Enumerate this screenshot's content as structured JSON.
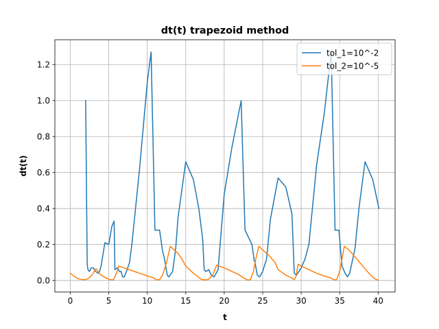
{
  "chart_data": {
    "type": "line",
    "title": "dt(t) trapezoid method",
    "xlabel": "t",
    "ylabel": "dt(t)",
    "xlim": [
      -2.0,
      42.2
    ],
    "ylim": [
      -0.064,
      1.338
    ],
    "xticks": [
      0,
      5,
      10,
      15,
      20,
      25,
      30,
      35,
      40
    ],
    "yticks": [
      0.0,
      0.2,
      0.4,
      0.6,
      0.8,
      1.0,
      1.2
    ],
    "grid": true,
    "legend": "top-right",
    "series": [
      {
        "name": "tol_1=10^-2",
        "color": "#1f77b4",
        "x": [
          2.0,
          2.2,
          2.3,
          2.5,
          2.7,
          3.0,
          3.3,
          3.6,
          3.8,
          4.0,
          4.5,
          5.0,
          5.4,
          5.7,
          5.8,
          6.1,
          6.4,
          6.6,
          6.8,
          7.0,
          7.3,
          7.7,
          8.0,
          9.0,
          10.0,
          10.5,
          11.0,
          11.6,
          12.0,
          12.2,
          12.6,
          12.8,
          13.3,
          13.7,
          14.0,
          15.0,
          16.0,
          16.7,
          17.2,
          17.4,
          17.6,
          18.0,
          18.3,
          18.7,
          19.2,
          20.0,
          21.0,
          22.2,
          22.7,
          23.6,
          23.9,
          24.0,
          24.3,
          24.6,
          25.0,
          25.5,
          26.0,
          27.0,
          28.0,
          28.8,
          29.1,
          29.4,
          29.7,
          30.0,
          30.5,
          31.0,
          32.0,
          33.0,
          33.9,
          34.4,
          34.9,
          35.3,
          35.7,
          36.0,
          36.3,
          36.6,
          37.0,
          37.5,
          38.3,
          39.3,
          40.1
        ],
        "values": [
          1.0,
          0.09,
          0.06,
          0.05,
          0.07,
          0.07,
          0.05,
          0.04,
          0.05,
          0.08,
          0.21,
          0.2,
          0.3,
          0.33,
          0.06,
          0.07,
          0.05,
          0.05,
          0.02,
          0.02,
          0.05,
          0.1,
          0.2,
          0.62,
          1.1,
          1.27,
          0.28,
          0.28,
          0.16,
          0.13,
          0.03,
          0.02,
          0.05,
          0.18,
          0.35,
          0.66,
          0.56,
          0.4,
          0.23,
          0.06,
          0.05,
          0.06,
          0.03,
          0.02,
          0.06,
          0.48,
          0.74,
          1.0,
          0.28,
          0.2,
          0.11,
          0.1,
          0.03,
          0.02,
          0.05,
          0.12,
          0.34,
          0.57,
          0.52,
          0.37,
          0.04,
          0.03,
          0.05,
          0.07,
          0.12,
          0.2,
          0.64,
          0.93,
          1.27,
          0.28,
          0.28,
          0.08,
          0.04,
          0.02,
          0.04,
          0.1,
          0.18,
          0.4,
          0.66,
          0.56,
          0.4
        ]
      },
      {
        "name": "tol_2=10^-5",
        "color": "#ff7f0e",
        "x": [
          0.0,
          0.3,
          0.6,
          1.0,
          1.5,
          2.0,
          2.3,
          2.6,
          3.0,
          3.2,
          3.4,
          3.6,
          3.8,
          4.0,
          4.4,
          4.8,
          5.2,
          5.6,
          6.0,
          6.3,
          7.0,
          8.0,
          9.0,
          10.0,
          10.8,
          11.2,
          11.6,
          12.0,
          12.5,
          13.0,
          13.5,
          14.0,
          14.5,
          15.0,
          16.0,
          16.6,
          17.0,
          17.4,
          17.9,
          18.5,
          19.0,
          20.0,
          21.0,
          22.0,
          22.5,
          23.0,
          23.4,
          23.8,
          24.1,
          24.5,
          25.0,
          25.8,
          26.6,
          27.0,
          28.0,
          28.7,
          29.1,
          29.3,
          29.6,
          30.0,
          30.5,
          31.0,
          32.0,
          33.0,
          33.8,
          34.3,
          34.6,
          35.0,
          35.6,
          36.2,
          37.2,
          38.0,
          39.0,
          39.6,
          40.0
        ],
        "values": [
          0.04,
          0.03,
          0.02,
          0.01,
          0.005,
          0.005,
          0.01,
          0.02,
          0.04,
          0.06,
          0.065,
          0.05,
          0.04,
          0.03,
          0.02,
          0.01,
          0.005,
          0.003,
          0.04,
          0.08,
          0.07,
          0.055,
          0.04,
          0.025,
          0.015,
          0.003,
          0.005,
          0.03,
          0.1,
          0.19,
          0.17,
          0.15,
          0.12,
          0.08,
          0.04,
          0.02,
          0.007,
          0.003,
          0.005,
          0.03,
          0.085,
          0.07,
          0.05,
          0.03,
          0.015,
          0.003,
          0.004,
          0.05,
          0.12,
          0.19,
          0.17,
          0.14,
          0.1,
          0.06,
          0.03,
          0.015,
          0.005,
          0.02,
          0.09,
          0.08,
          0.07,
          0.06,
          0.04,
          0.025,
          0.015,
          0.003,
          0.004,
          0.05,
          0.19,
          0.17,
          0.12,
          0.08,
          0.03,
          0.008,
          0.002
        ]
      }
    ]
  }
}
